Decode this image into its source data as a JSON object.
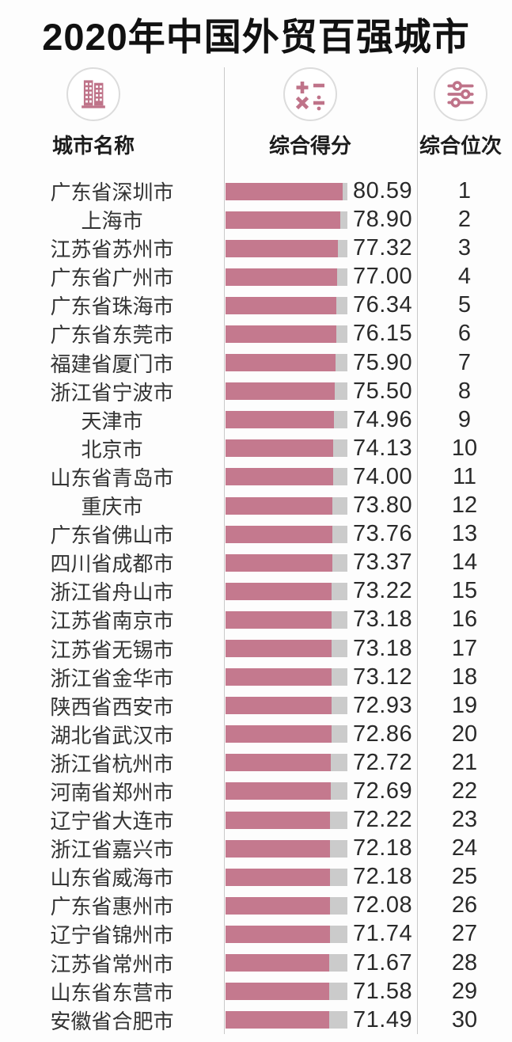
{
  "title": "2020年中国外贸百强城市",
  "header": {
    "columns": [
      {
        "label": "城市名称",
        "icon": "building-icon"
      },
      {
        "label": "综合得分",
        "icon": "math-symbols-icon"
      },
      {
        "label": "综合位次",
        "icon": "sliders-icon"
      }
    ]
  },
  "colors": {
    "bar": "#c4798e",
    "bar_track": "#cbcbcb",
    "icon": "#bf7389",
    "divider": "#c9c9c9",
    "title_text": "#111111",
    "city_text": "#333333",
    "value_text": "#2a2a2a"
  },
  "chart_data": {
    "type": "bar",
    "orientation": "horizontal",
    "title": "2020年中国外贸百强城市",
    "column_headers": [
      "城市名称",
      "综合得分",
      "综合位次"
    ],
    "categories": [
      "广东省深圳市",
      "上海市",
      "江苏省苏州市",
      "广东省广州市",
      "广东省珠海市",
      "广东省东莞市",
      "福建省厦门市",
      "浙江省宁波市",
      "天津市",
      "北京市",
      "山东省青岛市",
      "重庆市",
      "广东省佛山市",
      "四川省成都市",
      "浙江省舟山市",
      "江苏省南京市",
      "江苏省无锡市",
      "浙江省金华市",
      "陕西省西安市",
      "湖北省武汉市",
      "浙江省杭州市",
      "河南省郑州市",
      "辽宁省大连市",
      "浙江省嘉兴市",
      "山东省威海市",
      "广东省惠州市",
      "辽宁省锦州市",
      "江苏省常州市",
      "山东省东营市",
      "安徽省合肥市"
    ],
    "values": [
      80.59,
      78.9,
      77.32,
      77.0,
      76.34,
      76.15,
      75.9,
      75.5,
      74.96,
      74.13,
      74.0,
      73.8,
      73.76,
      73.37,
      73.22,
      73.18,
      73.18,
      73.12,
      72.93,
      72.86,
      72.72,
      72.69,
      72.22,
      72.18,
      72.18,
      72.08,
      71.74,
      71.67,
      71.58,
      71.49
    ],
    "ranks": [
      1,
      2,
      3,
      4,
      5,
      6,
      7,
      8,
      9,
      10,
      11,
      12,
      13,
      14,
      15,
      16,
      17,
      18,
      19,
      20,
      21,
      22,
      23,
      24,
      25,
      26,
      27,
      28,
      29,
      30
    ],
    "value_decimals": 2,
    "value_labels": true,
    "bar_axis_max": 84,
    "legend": "none",
    "grid": "off"
  }
}
